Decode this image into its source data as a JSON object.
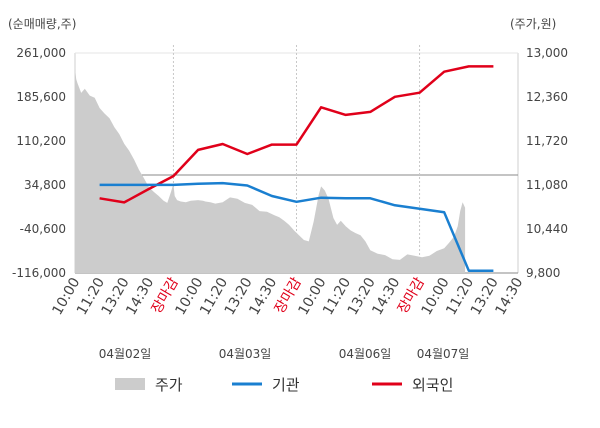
{
  "chart_data": {
    "type": "line",
    "left_axis": {
      "label": "(순매매량,주)",
      "ticks": [
        "261,000",
        "185,600",
        "110,200",
        "34,800",
        "-40,600",
        "-116,000"
      ],
      "ylim": [
        -116000,
        261000
      ]
    },
    "right_axis": {
      "label": "(주가,원)",
      "ticks": [
        "13,000",
        "12,360",
        "11,720",
        "11,080",
        "10,440",
        "9,800"
      ],
      "ylim": [
        9800,
        13000
      ]
    },
    "x_ticks": [
      {
        "label": "10:00",
        "color": "#444444"
      },
      {
        "label": "11:20",
        "color": "#444444"
      },
      {
        "label": "13:20",
        "color": "#444444"
      },
      {
        "label": "14:30",
        "color": "#444444"
      },
      {
        "label": "장마감",
        "color": "#e0001a"
      },
      {
        "label": "10:00",
        "color": "#444444"
      },
      {
        "label": "11:20",
        "color": "#444444"
      },
      {
        "label": "13:20",
        "color": "#444444"
      },
      {
        "label": "14:30",
        "color": "#444444"
      },
      {
        "label": "장마감",
        "color": "#e0001a"
      },
      {
        "label": "10:00",
        "color": "#444444"
      },
      {
        "label": "11:20",
        "color": "#444444"
      },
      {
        "label": "13:20",
        "color": "#444444"
      },
      {
        "label": "14:30",
        "color": "#444444"
      },
      {
        "label": "장마감",
        "color": "#e0001a"
      },
      {
        "label": "10:00",
        "color": "#444444"
      },
      {
        "label": "11:20",
        "color": "#444444"
      },
      {
        "label": "13:20",
        "color": "#444444"
      },
      {
        "label": "14:30",
        "color": "#444444"
      }
    ],
    "dates": [
      "04월02일",
      "04월03일",
      "04월06일",
      "04월07일"
    ],
    "legend": [
      {
        "name": "주가",
        "color": "#cccccc",
        "kind": "area"
      },
      {
        "name": "기관",
        "color": "#1a7fd0",
        "kind": "line"
      },
      {
        "name": "외국인",
        "color": "#e0001a",
        "kind": "line"
      }
    ],
    "series": [
      {
        "name": "외국인",
        "axis": "left",
        "color": "#e0001a",
        "x": [
          1,
          2,
          3,
          4,
          5,
          6,
          7,
          8,
          9,
          10,
          11,
          12,
          13,
          14,
          15,
          16,
          17
        ],
        "values": [
          12000,
          5000,
          28000,
          50000,
          95000,
          105000,
          88000,
          104000,
          104000,
          168000,
          155000,
          160000,
          186000,
          193000,
          229000,
          238000,
          238000
        ]
      },
      {
        "name": "기관",
        "axis": "left",
        "color": "#1a7fd0",
        "x": [
          1,
          2,
          3,
          4,
          5,
          6,
          7,
          8,
          9,
          10,
          11,
          12,
          13,
          14,
          15,
          16,
          17
        ],
        "values": [
          35000,
          35000,
          35000,
          35000,
          37000,
          38000,
          34000,
          16000,
          6000,
          13000,
          12000,
          12000,
          0,
          -6000,
          -12000,
          -112000,
          -112000
        ]
      },
      {
        "name": "주가",
        "axis": "right",
        "color": "#cccccc",
        "x": [
          0,
          0.05,
          0.1,
          0.25,
          0.4,
          0.6,
          0.8,
          1.0,
          1.2,
          1.4,
          1.6,
          1.8,
          2.0,
          2.2,
          2.4,
          2.6,
          2.8,
          3.0,
          3.2,
          3.4,
          3.6,
          3.75,
          3.9,
          4.0,
          4.05,
          4.15,
          4.3,
          4.5,
          4.7,
          5.0,
          5.2,
          5.3,
          5.5,
          5.7,
          6.0,
          6.3,
          6.6,
          6.9,
          7.2,
          7.5,
          7.8,
          8.1,
          8.3,
          8.5,
          8.7,
          8.9,
          9.1,
          9.3,
          9.5,
          9.7,
          9.9,
          10.0,
          10.15,
          10.3,
          10.5,
          10.65,
          10.8,
          11.0,
          11.2,
          11.4,
          11.6,
          11.8,
          12.0,
          12.3,
          12.6,
          12.9,
          13.2,
          13.5,
          13.8,
          14.1,
          14.4,
          14.7,
          15.0,
          15.2,
          15.4,
          15.55,
          15.65,
          15.75,
          15.85
        ],
        "values": [
          12780,
          12620,
          12560,
          12420,
          12480,
          12380,
          12350,
          12200,
          12120,
          12050,
          11920,
          11820,
          11680,
          11580,
          11450,
          11300,
          11180,
          11050,
          10980,
          10920,
          10850,
          10820,
          10980,
          11100,
          10920,
          10860,
          10840,
          10830,
          10850,
          10860,
          10850,
          10840,
          10830,
          10810,
          10830,
          10900,
          10880,
          10820,
          10790,
          10700,
          10690,
          10640,
          10610,
          10560,
          10500,
          10420,
          10350,
          10280,
          10260,
          10550,
          10930,
          11060,
          11000,
          10880,
          10600,
          10500,
          10560,
          10480,
          10420,
          10380,
          10350,
          10260,
          10130,
          10080,
          10060,
          10000,
          9990,
          10070,
          10050,
          10030,
          10050,
          10120,
          10160,
          10240,
          10330,
          10480,
          10700,
          10830,
          10750
        ]
      }
    ],
    "grid": "horizontal midline only",
    "legend_position": "bottom"
  }
}
